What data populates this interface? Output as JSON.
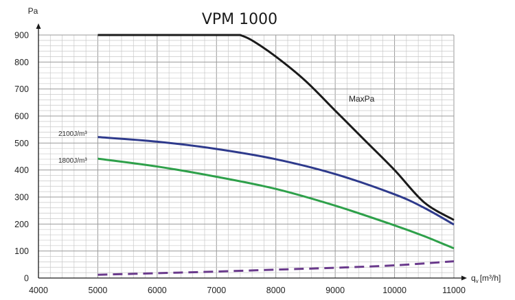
{
  "chart_data": {
    "type": "line",
    "title": "VPM 1000",
    "xlabel": "q",
    "xlabel_subscript": "v",
    "xlabel_unit": "[m³/h]",
    "ylabel": "Pa",
    "xlim": [
      4000,
      11000
    ],
    "ylim": [
      0,
      900
    ],
    "xticks": [
      4000,
      5000,
      6000,
      7000,
      8000,
      9000,
      10000,
      11000
    ],
    "yticks": [
      0,
      100,
      200,
      300,
      400,
      500,
      600,
      700,
      800,
      900
    ],
    "grid": true,
    "legend": "none",
    "series": [
      {
        "name": "MaxPa",
        "color": "#1a1a1a",
        "style": "solid",
        "x": [
          5000,
          7400,
          7600,
          8000,
          8500,
          9000,
          9500,
          10000,
          10500,
          11000
        ],
        "y": [
          900,
          900,
          880,
          820,
          730,
          620,
          510,
          400,
          280,
          215
        ]
      },
      {
        "name": "2100J/m³",
        "color": "#2e3a8c",
        "style": "solid",
        "x": [
          5000,
          6000,
          7000,
          8000,
          9000,
          10000,
          10500,
          11000
        ],
        "y": [
          522,
          505,
          478,
          440,
          385,
          310,
          260,
          198
        ]
      },
      {
        "name": "1800J/m³",
        "color": "#2ea04a",
        "style": "solid",
        "x": [
          5000,
          6000,
          7000,
          8000,
          9000,
          10000,
          10500,
          11000
        ],
        "y": [
          442,
          413,
          375,
          330,
          268,
          195,
          155,
          110
        ]
      },
      {
        "name": "",
        "color": "#6a3a8c",
        "style": "dashed",
        "x": [
          5000,
          6000,
          7000,
          8000,
          9000,
          10000,
          11000
        ],
        "y": [
          12,
          18,
          24,
          31,
          38,
          47,
          62
        ]
      }
    ]
  }
}
